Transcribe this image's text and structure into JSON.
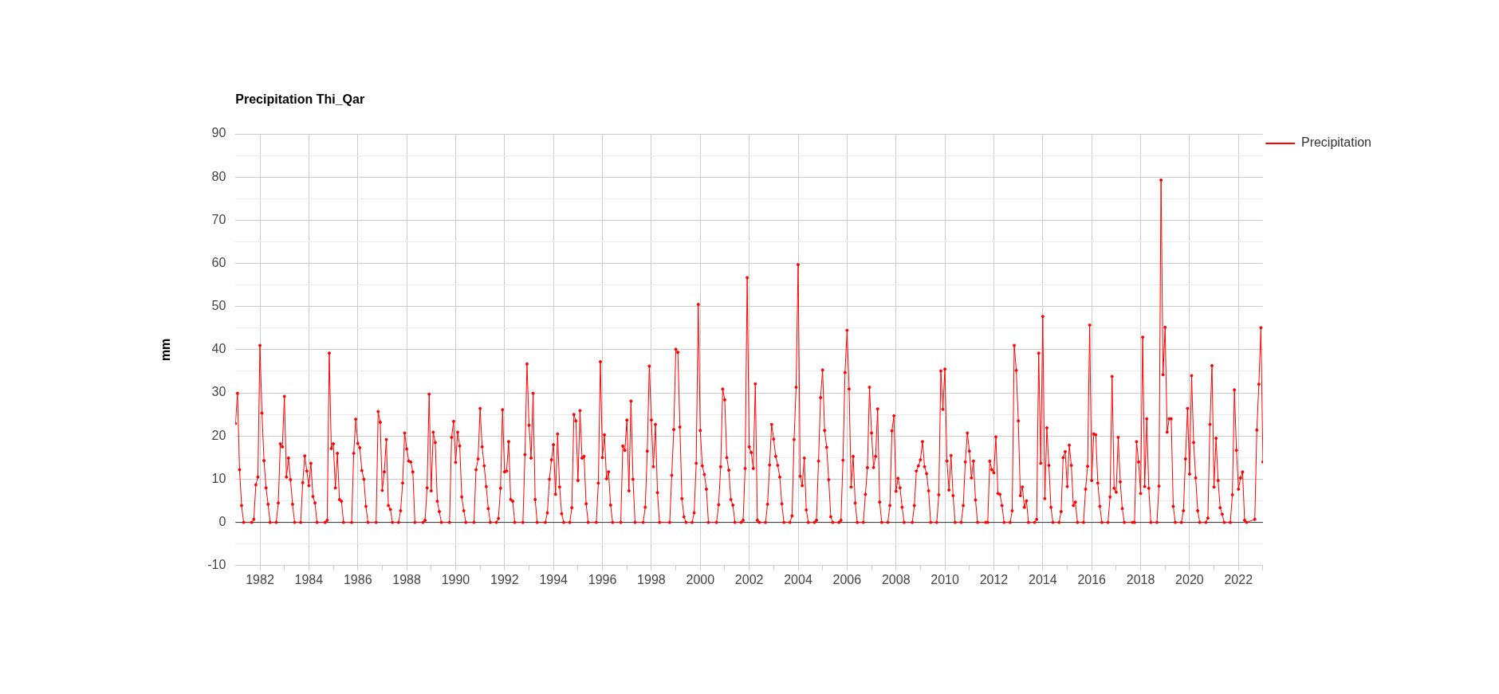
{
  "chart_data": {
    "type": "line",
    "title": "Precipitation Thi_Qar",
    "ylabel": "mm",
    "xlim": [
      "1981-01",
      "2023-01"
    ],
    "xticks": [
      {
        "value": "1982",
        "label": "1982"
      },
      {
        "value": "1983",
        "label": null
      },
      {
        "value": "1984",
        "label": "1984"
      },
      {
        "value": "1985",
        "label": null
      },
      {
        "value": "1986",
        "label": "1986"
      },
      {
        "value": "1987",
        "label": null
      },
      {
        "value": "1988",
        "label": "1988"
      },
      {
        "value": "1989",
        "label": null
      },
      {
        "value": "1990",
        "label": "1990"
      },
      {
        "value": "1991",
        "label": null
      },
      {
        "value": "1992",
        "label": "1992"
      },
      {
        "value": "1993",
        "label": null
      },
      {
        "value": "1994",
        "label": "1994"
      },
      {
        "value": "1995",
        "label": null
      },
      {
        "value": "1996",
        "label": "1996"
      },
      {
        "value": "1997",
        "label": null
      },
      {
        "value": "1998",
        "label": "1998"
      },
      {
        "value": "1999",
        "label": null
      },
      {
        "value": "2000",
        "label": "2000"
      },
      {
        "value": "2001",
        "label": null
      },
      {
        "value": "2002",
        "label": "2002"
      },
      {
        "value": "2003",
        "label": null
      },
      {
        "value": "2004",
        "label": "2004"
      },
      {
        "value": "2005",
        "label": null
      },
      {
        "value": "2006",
        "label": "2006"
      },
      {
        "value": "2007",
        "label": null
      },
      {
        "value": "2008",
        "label": "2008"
      },
      {
        "value": "2009",
        "label": null
      },
      {
        "value": "2010",
        "label": "2010"
      },
      {
        "value": "2011",
        "label": null
      },
      {
        "value": "2012",
        "label": "2012"
      },
      {
        "value": "2013",
        "label": null
      },
      {
        "value": "2014",
        "label": "2014"
      },
      {
        "value": "2015",
        "label": null
      },
      {
        "value": "2016",
        "label": "2016"
      },
      {
        "value": "2017",
        "label": null
      },
      {
        "value": "2018",
        "label": "2018"
      },
      {
        "value": "2019",
        "label": null
      },
      {
        "value": "2020",
        "label": "2020"
      },
      {
        "value": "2021",
        "label": null
      },
      {
        "value": "2022",
        "label": "2022"
      },
      {
        "value": "2023",
        "label": null
      }
    ],
    "ylim": [
      -10,
      90
    ],
    "yticks": [
      -10,
      {
        "value": -5,
        "label": null
      },
      0,
      {
        "value": 5,
        "label": null
      },
      10,
      {
        "value": 15,
        "label": null
      },
      20,
      {
        "value": 25,
        "label": null
      },
      30,
      {
        "value": 35,
        "label": null
      },
      40,
      {
        "value": 45,
        "label": null
      },
      50,
      {
        "value": 55,
        "label": null
      },
      60,
      {
        "value": 65,
        "label": null
      },
      70,
      {
        "value": 75,
        "label": null
      },
      80,
      {
        "value": 85,
        "label": null
      },
      90
    ],
    "grid": true,
    "legend": "top right",
    "marker": "circle",
    "line_style": "solid",
    "ref_lines": [
      {
        "axis": "y",
        "value": 0,
        "color": "#333333"
      }
    ],
    "series": [
      {
        "name": "Precipitation",
        "color": "#ff0000",
        "x": [
          "1981-01",
          "1981-02",
          "1981-03",
          "1981-04",
          "1981-05",
          "1981-09",
          "1981-10",
          "1981-11",
          "1981-12",
          "1982-01",
          "1982-02",
          "1982-03",
          "1982-04",
          "1982-05",
          "1982-06",
          "1982-09",
          "1982-10",
          "1982-11",
          "1982-12",
          "1983-01",
          "1983-02",
          "1983-03",
          "1983-04",
          "1983-05",
          "1983-06",
          "1983-09",
          "1983-10",
          "1983-11",
          "1983-12",
          "1984-01",
          "1984-02",
          "1984-03",
          "1984-04",
          "1984-05",
          "1984-09",
          "1984-10",
          "1984-11",
          "1984-12",
          "1985-01",
          "1985-02",
          "1985-03",
          "1985-04",
          "1985-05",
          "1985-06",
          "1985-10",
          "1985-11",
          "1985-12",
          "1986-01",
          "1986-02",
          "1986-03",
          "1986-04",
          "1986-05",
          "1986-06",
          "1986-10",
          "1986-11",
          "1986-12",
          "1987-01",
          "1987-02",
          "1987-03",
          "1987-04",
          "1987-05",
          "1987-06",
          "1987-09",
          "1987-10",
          "1987-11",
          "1987-12",
          "1988-01",
          "1988-02",
          "1988-03",
          "1988-04",
          "1988-05",
          "1988-09",
          "1988-10",
          "1988-11",
          "1988-12",
          "1989-01",
          "1989-02",
          "1989-03",
          "1989-04",
          "1989-05",
          "1989-06",
          "1989-10",
          "1989-11",
          "1989-12",
          "1990-01",
          "1990-02",
          "1990-03",
          "1990-04",
          "1990-05",
          "1990-06",
          "1990-10",
          "1990-11",
          "1990-12",
          "1991-01",
          "1991-02",
          "1991-03",
          "1991-04",
          "1991-05",
          "1991-06",
          "1991-09",
          "1991-10",
          "1991-11",
          "1991-12",
          "1992-01",
          "1992-02",
          "1992-03",
          "1992-04",
          "1992-05",
          "1992-06",
          "1992-10",
          "1992-11",
          "1992-12",
          "1993-01",
          "1993-02",
          "1993-03",
          "1993-04",
          "1993-05",
          "1993-09",
          "1993-10",
          "1993-11",
          "1993-12",
          "1994-01",
          "1994-02",
          "1994-03",
          "1994-04",
          "1994-05",
          "1994-06",
          "1994-09",
          "1994-10",
          "1994-11",
          "1994-12",
          "1995-01",
          "1995-02",
          "1995-03",
          "1995-04",
          "1995-05",
          "1995-06",
          "1995-10",
          "1995-11",
          "1995-12",
          "1996-01",
          "1996-02",
          "1996-03",
          "1996-04",
          "1996-05",
          "1996-06",
          "1996-10",
          "1996-11",
          "1996-12",
          "1997-01",
          "1997-02",
          "1997-03",
          "1997-04",
          "1997-05",
          "1997-09",
          "1997-10",
          "1997-11",
          "1997-12",
          "1998-01",
          "1998-02",
          "1998-03",
          "1998-04",
          "1998-05",
          "1998-10",
          "1998-11",
          "1998-12",
          "1999-01",
          "1999-02",
          "1999-03",
          "1999-04",
          "1999-05",
          "1999-06",
          "1999-09",
          "1999-10",
          "1999-11",
          "1999-12",
          "2000-01",
          "2000-02",
          "2000-03",
          "2000-04",
          "2000-05",
          "2000-09",
          "2000-10",
          "2000-11",
          "2000-12",
          "2001-01",
          "2001-02",
          "2001-03",
          "2001-04",
          "2001-05",
          "2001-06",
          "2001-09",
          "2001-10",
          "2001-11",
          "2001-12",
          "2002-01",
          "2002-02",
          "2002-03",
          "2002-04",
          "2002-05",
          "2002-06",
          "2002-09",
          "2002-10",
          "2002-11",
          "2002-12",
          "2003-01",
          "2003-02",
          "2003-03",
          "2003-04",
          "2003-05",
          "2003-06",
          "2003-09",
          "2003-10",
          "2003-11",
          "2003-12",
          "2004-01",
          "2004-02",
          "2004-03",
          "2004-04",
          "2004-05",
          "2004-06",
          "2004-09",
          "2004-10",
          "2004-11",
          "2004-12",
          "2005-01",
          "2005-02",
          "2005-03",
          "2005-04",
          "2005-05",
          "2005-06",
          "2005-09",
          "2005-10",
          "2005-11",
          "2005-12",
          "2006-01",
          "2006-02",
          "2006-03",
          "2006-04",
          "2006-05",
          "2006-06",
          "2006-09",
          "2006-10",
          "2006-11",
          "2006-12",
          "2007-01",
          "2007-02",
          "2007-03",
          "2007-04",
          "2007-05",
          "2007-06",
          "2007-09",
          "2007-10",
          "2007-11",
          "2007-12",
          "2008-01",
          "2008-02",
          "2008-03",
          "2008-04",
          "2008-05",
          "2008-09",
          "2008-10",
          "2008-11",
          "2008-12",
          "2009-01",
          "2009-02",
          "2009-03",
          "2009-04",
          "2009-05",
          "2009-06",
          "2009-09",
          "2009-10",
          "2009-11",
          "2009-12",
          "2010-01",
          "2010-02",
          "2010-03",
          "2010-04",
          "2010-05",
          "2010-06",
          "2010-09",
          "2010-10",
          "2010-11",
          "2010-12",
          "2011-01",
          "2011-02",
          "2011-03",
          "2011-04",
          "2011-05",
          "2011-09",
          "2011-10",
          "2011-11",
          "2011-12",
          "2012-01",
          "2012-02",
          "2012-03",
          "2012-04",
          "2012-05",
          "2012-06",
          "2012-09",
          "2012-10",
          "2012-11",
          "2012-12",
          "2013-01",
          "2013-02",
          "2013-03",
          "2013-04",
          "2013-05",
          "2013-06",
          "2013-09",
          "2013-10",
          "2013-11",
          "2013-12",
          "2014-01",
          "2014-02",
          "2014-03",
          "2014-04",
          "2014-05",
          "2014-06",
          "2014-09",
          "2014-10",
          "2014-11",
          "2014-12",
          "2015-01",
          "2015-02",
          "2015-03",
          "2015-04",
          "2015-05",
          "2015-06",
          "2015-09",
          "2015-10",
          "2015-11",
          "2015-12",
          "2016-01",
          "2016-02",
          "2016-03",
          "2016-04",
          "2016-05",
          "2016-06",
          "2016-09",
          "2016-10",
          "2016-11",
          "2016-12",
          "2017-01",
          "2017-02",
          "2017-03",
          "2017-04",
          "2017-05",
          "2017-09",
          "2017-10",
          "2017-11",
          "2017-12",
          "2018-01",
          "2018-02",
          "2018-03",
          "2018-04",
          "2018-05",
          "2018-06",
          "2018-09",
          "2018-10",
          "2018-11",
          "2018-12",
          "2019-01",
          "2019-02",
          "2019-03",
          "2019-04",
          "2019-05",
          "2019-06",
          "2019-09",
          "2019-10",
          "2019-11",
          "2019-12",
          "2020-01",
          "2020-02",
          "2020-03",
          "2020-04",
          "2020-05",
          "2020-06",
          "2020-09",
          "2020-10",
          "2020-11",
          "2020-12",
          "2021-01",
          "2021-02",
          "2021-03",
          "2021-04",
          "2021-05",
          "2021-06",
          "2021-09",
          "2021-10",
          "2021-11",
          "2021-12",
          "2022-01",
          "2022-02",
          "2022-03",
          "2022-04",
          "2022-05",
          "2022-09",
          "2022-10",
          "2022-11",
          "2022-12",
          "2023-01"
        ],
        "values": [
          22.9,
          29.9,
          12.2,
          3.9,
          0,
          0,
          0.7,
          8.7,
          10.5,
          41,
          25.3,
          14.3,
          8,
          4.2,
          0,
          0,
          4.5,
          18.2,
          17.5,
          29.2,
          10.5,
          14.9,
          9.9,
          4.2,
          0,
          0,
          9.2,
          15.4,
          11.9,
          8.5,
          13.7,
          6,
          4.5,
          0,
          0,
          0.5,
          39.2,
          17.1,
          18.2,
          8,
          16,
          5.3,
          4.9,
          0,
          0,
          16,
          23.9,
          18.3,
          17.3,
          12,
          10,
          3.7,
          0,
          0,
          25.7,
          23.2,
          7.4,
          11.7,
          19.2,
          3.9,
          3,
          0,
          0,
          2.7,
          9.1,
          20.7,
          17,
          14.2,
          14,
          11.7,
          0,
          0,
          0.5,
          8,
          29.7,
          7.3,
          20.9,
          18.5,
          4.9,
          2.5,
          0,
          0,
          19.7,
          23.4,
          13.9,
          20.9,
          17.7,
          5.9,
          2.7,
          0,
          0,
          12.2,
          14.7,
          26.4,
          17.5,
          13.1,
          8.3,
          3.2,
          0,
          0,
          0.9,
          7.9,
          26.1,
          11.7,
          11.9,
          18.7,
          5.3,
          4.9,
          0,
          0,
          15.7,
          36.7,
          22.5,
          14.9,
          29.9,
          5.3,
          0,
          0,
          2.2,
          10,
          14.5,
          18,
          6.5,
          20.5,
          8.2,
          2,
          0,
          0,
          3.4,
          25,
          23.5,
          9.7,
          25.9,
          14.9,
          15.3,
          4.3,
          0,
          0,
          9.1,
          37.2,
          15,
          20.3,
          10.1,
          11.7,
          4,
          0,
          0,
          17.7,
          16.7,
          23.7,
          7.3,
          28.1,
          10,
          0,
          0,
          3.5,
          16.5,
          36.2,
          23.7,
          12.9,
          22.7,
          6.9,
          0,
          0,
          10.9,
          21.5,
          40.1,
          39.4,
          22.1,
          5.5,
          1.3,
          0,
          0,
          2.2,
          13.7,
          50.5,
          21.3,
          13.1,
          11.1,
          7.7,
          0,
          0,
          4.1,
          12.9,
          30.9,
          28.4,
          15,
          12.1,
          5.3,
          4,
          0,
          0,
          0.5,
          12.5,
          56.7,
          17.5,
          16.2,
          12.5,
          32.1,
          0.5,
          0,
          0,
          4.2,
          13.3,
          22.7,
          19.3,
          15.3,
          13.2,
          10.5,
          4.3,
          0,
          0,
          1.5,
          19.2,
          31.3,
          59.7,
          10.7,
          8.5,
          14.9,
          2.9,
          0,
          0,
          0.5,
          14.2,
          28.9,
          35.3,
          21.3,
          17.4,
          9.9,
          1.3,
          0,
          0,
          0.5,
          14.4,
          34.7,
          44.5,
          30.9,
          8.2,
          15.3,
          4.5,
          0,
          0,
          6.5,
          12.7,
          31.3,
          20.7,
          12.7,
          15.3,
          26.3,
          4.7,
          0,
          0,
          3.9,
          21.2,
          24.7,
          7.2,
          10.2,
          8,
          3.5,
          0,
          0,
          3.9,
          11.9,
          13.1,
          14.5,
          18.7,
          12.9,
          11.3,
          7.3,
          0,
          0,
          6.4,
          35.1,
          26.2,
          35.5,
          14.2,
          7.5,
          15.5,
          6.2,
          0,
          0,
          3.9,
          14,
          20.7,
          16.5,
          10.3,
          14.2,
          5.2,
          0,
          0,
          0,
          14.2,
          12.2,
          11.5,
          19.8,
          6.7,
          6.5,
          3.9,
          0,
          0,
          2.7,
          41,
          35.2,
          23.5,
          6.2,
          8.2,
          3.5,
          5,
          0,
          0,
          0.7,
          39.2,
          13.7,
          47.7,
          5.5,
          21.9,
          13.2,
          3.5,
          0,
          0,
          2.5,
          15,
          16.4,
          8.3,
          17.9,
          13.2,
          3.9,
          4.7,
          0,
          0,
          7.7,
          13,
          45.7,
          9.7,
          20.5,
          20.3,
          9.1,
          3.7,
          0,
          0,
          5.9,
          33.8,
          7.9,
          7,
          19.7,
          9.4,
          3.2,
          0,
          0,
          0,
          18.7,
          14,
          6.7,
          42.9,
          8.3,
          24,
          7.9,
          0,
          0,
          8.4,
          79.3,
          34.2,
          45.2,
          20.9,
          24,
          24,
          3.7,
          0,
          0,
          2.7,
          14.7,
          26.4,
          11.2,
          34,
          18.5,
          10.3,
          2.7,
          0,
          0,
          1,
          22.7,
          36.3,
          8.2,
          19.5,
          9.7,
          3.4,
          1.9,
          0,
          0,
          6.4,
          30.7,
          16.7,
          7.7,
          10.3,
          11.7,
          0.5,
          0,
          0.7,
          21.4,
          32,
          45.1,
          14
        ]
      }
    ]
  }
}
